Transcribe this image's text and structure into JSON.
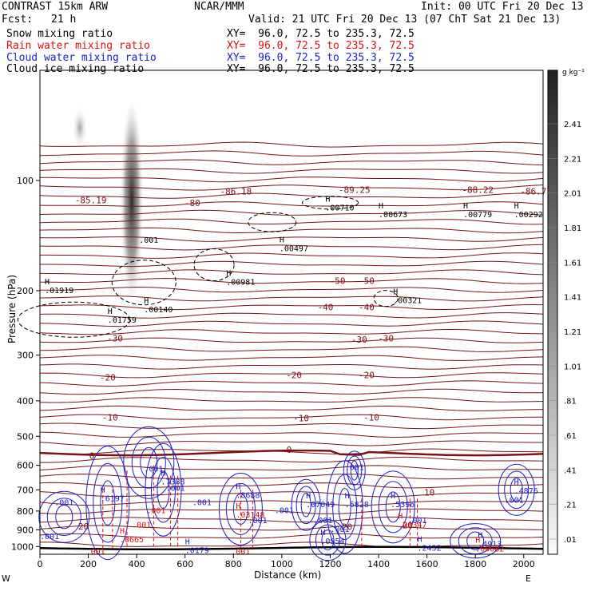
{
  "header": {
    "model": "CONTRAST 15km ARW",
    "center": "NCAR/MMM",
    "init": "Init: 00 UTC Fri 20 Dec 13",
    "fcst_label": "Fcst:",
    "fcst_value": "21 h",
    "valid": "Valid: 21 UTC Fri 20 Dec 13 (07 ChT Sat 21 Dec 13)"
  },
  "fields": [
    {
      "name": "Snow mixing ratio",
      "xy": "XY=  96.0, 72.5 to 235.3, 72.5",
      "color": "#000000"
    },
    {
      "name": "Rain water mixing ratio",
      "xy": "XY=  96.0, 72.5 to 235.3, 72.5",
      "color": "#dd1111"
    },
    {
      "name": "Cloud water mixing ratio",
      "xy": "XY=  96.0, 72.5 to 235.3, 72.5",
      "color": "#1a22cc"
    },
    {
      "name": "Cloud ice mixing ratio",
      "xy": "XY=  96.0, 72.5 to 235.3, 72.5",
      "color": "#000000"
    }
  ],
  "colorbar": {
    "unit": "g kg⁻¹",
    "labels": [
      "2.41",
      "2.21",
      "2.01",
      "1.81",
      "1.61",
      "1.41",
      "1.21",
      "1.01",
      ".81",
      ".61",
      ".41",
      ".21",
      ".01"
    ]
  },
  "colors": {
    "temperature": "#7a1414",
    "cloud_water": "#1a22cc",
    "rain": "#dd1111",
    "snow": "#000000"
  },
  "chart_data": {
    "type": "cross-section",
    "xlabel": "Distance (km)",
    "ylabel": "Pressure (hPa)",
    "x_ticks": [
      "0",
      "200",
      "400",
      "600",
      "800",
      "1000",
      "1200",
      "1400",
      "1600",
      "1800",
      "2000"
    ],
    "y_ticks": [
      "100",
      "200",
      "300",
      "400",
      "500",
      "600",
      "700",
      "800",
      "900",
      "1000"
    ],
    "xlim": [
      0,
      2080
    ],
    "ylim": [
      1050,
      50
    ],
    "y_scale": "log",
    "left_end": "W",
    "right_end": "E",
    "temperature_labels": [
      {
        "text": "-85.19",
        "x": 210,
        "p": 113
      },
      {
        "text": "-80",
        "x": 630,
        "p": 115
      },
      {
        "text": "-86.18",
        "x": 810,
        "p": 107
      },
      {
        "text": "-89.25",
        "x": 1300,
        "p": 106
      },
      {
        "text": "-88.22",
        "x": 1810,
        "p": 106
      },
      {
        "text": "-86.7",
        "x": 2040,
        "p": 107
      },
      {
        "text": "-50",
        "x": 1230,
        "p": 188
      },
      {
        "text": "-50",
        "x": 1350,
        "p": 188
      },
      {
        "text": "-40",
        "x": 1180,
        "p": 222
      },
      {
        "text": "-40",
        "x": 1350,
        "p": 222
      },
      {
        "text": "-30",
        "x": 310,
        "p": 270
      },
      {
        "text": "-30",
        "x": 1320,
        "p": 272
      },
      {
        "text": "-30",
        "x": 1430,
        "p": 270
      },
      {
        "text": "-20",
        "x": 280,
        "p": 345
      },
      {
        "text": "-20",
        "x": 1050,
        "p": 340
      },
      {
        "text": "-20",
        "x": 1350,
        "p": 340
      },
      {
        "text": "-10",
        "x": 290,
        "p": 444
      },
      {
        "text": "-10",
        "x": 1080,
        "p": 446
      },
      {
        "text": "-10",
        "x": 1370,
        "p": 444
      },
      {
        "text": "0",
        "x": 215,
        "p": 565
      },
      {
        "text": "0",
        "x": 1030,
        "p": 544
      },
      {
        "text": "10",
        "x": 1610,
        "p": 712
      },
      {
        "text": "20",
        "x": 180,
        "p": 880
      },
      {
        "text": "20",
        "x": 1270,
        "p": 882
      },
      {
        "text": "20",
        "x": 1520,
        "p": 875
      }
    ],
    "extrema": [
      {
        "m": "H",
        "value": ".01919",
        "x": 20,
        "p": 195,
        "color": "#000000"
      },
      {
        "m": "H",
        "value": ".01759",
        "x": 280,
        "p": 235,
        "color": "#000000"
      },
      {
        "m": "H",
        "value": ".00140",
        "x": 430,
        "p": 220,
        "color": "#000000"
      },
      {
        "m": "H",
        "value": ".00981",
        "x": 770,
        "p": 185,
        "color": "#000000"
      },
      {
        "m": "H",
        "value": ".00497",
        "x": 990,
        "p": 150,
        "color": "#000000"
      },
      {
        "m": "H",
        "value": ".00710",
        "x": 1180,
        "p": 116,
        "color": "#000000"
      },
      {
        "m": "H",
        "value": ".00673",
        "x": 1400,
        "p": 121,
        "color": "#000000"
      },
      {
        "m": "H",
        "value": ".00779",
        "x": 1750,
        "p": 121,
        "color": "#000000"
      },
      {
        "m": "H",
        "value": ".00292",
        "x": 1960,
        "p": 121,
        "color": "#000000"
      },
      {
        "m": "H",
        "value": ".00321",
        "x": 1460,
        "p": 208,
        "color": "#000000"
      },
      {
        "m": "H",
        "value": ".7388",
        "x": 500,
        "p": 650,
        "color": "#1a22cc"
      },
      {
        "m": "H",
        "value": ".6197",
        "x": 250,
        "p": 722,
        "color": "#1a22cc"
      },
      {
        "m": "H",
        "value": ".8688",
        "x": 810,
        "p": 708,
        "color": "#1a22cc"
      },
      {
        "m": "H",
        "value": ".07049",
        "x": 1100,
        "p": 750,
        "color": "#1a22cc"
      },
      {
        "m": "H",
        "value": ".6828",
        "x": 1260,
        "p": 750,
        "color": "#1a22cc"
      },
      {
        "m": "H",
        "value": ".5396",
        "x": 1450,
        "p": 750,
        "color": "#1a22cc"
      },
      {
        "m": "H",
        "value": ".4913",
        "x": 1810,
        "p": 962,
        "color": "#1a22cc"
      },
      {
        "m": "H",
        "value": ".4876",
        "x": 1960,
        "p": 688,
        "color": "#1a22cc"
      },
      {
        "m": "H",
        "value": ".0954",
        "x": 1160,
        "p": 945,
        "color": "#1a22cc"
      },
      {
        "m": "H",
        "value": ".2432",
        "x": 1560,
        "p": 985,
        "color": "#1a22cc"
      },
      {
        "m": "H",
        "value": ".0179",
        "x": 600,
        "p": 1000,
        "color": "#1a22cc"
      },
      {
        "m": "H",
        "value": ".0665",
        "x": 330,
        "p": 935,
        "color": "#dd1111"
      },
      {
        "m": "H",
        "value": ".03148",
        "x": 810,
        "p": 800,
        "color": "#dd1111"
      },
      {
        "m": "H",
        "value": ".00347",
        "x": 1480,
        "p": 852,
        "color": "#dd1111"
      },
      {
        "m": "H",
        "value": ".00082",
        "x": 1800,
        "p": 990,
        "color": "#dd1111"
      }
    ],
    "contour_labels": [
      {
        "text": ".001",
        "x": 450,
        "p": 145,
        "color": "#000000"
      },
      {
        "text": ".001",
        "x": 470,
        "p": 612,
        "color": "#1a22cc"
      },
      {
        "text": ".001",
        "x": 560,
        "p": 690,
        "color": "#1a22cc"
      },
      {
        "text": ".001",
        "x": 670,
        "p": 755,
        "color": "#1a22cc"
      },
      {
        "text": ".001",
        "x": 100,
        "p": 755,
        "color": "#1a22cc"
      },
      {
        "text": ".001",
        "x": 900,
        "p": 845,
        "color": "#1a22cc"
      },
      {
        "text": ".001",
        "x": 1010,
        "p": 795,
        "color": "#1a22cc"
      },
      {
        "text": ".001",
        "x": 1170,
        "p": 845,
        "color": "#1a22cc"
      },
      {
        "text": ".001",
        "x": 1240,
        "p": 895,
        "color": "#1a22cc"
      },
      {
        "text": ".001",
        "x": 1560,
        "p": 845,
        "color": "#1a22cc"
      },
      {
        "text": ".001",
        "x": 40,
        "p": 935,
        "color": "#1a22cc"
      },
      {
        "text": ".001",
        "x": 1300,
        "p": 605,
        "color": "#1a22cc"
      },
      {
        "text": ".001",
        "x": 1960,
        "p": 745,
        "color": "#1a22cc"
      },
      {
        "text": ".001",
        "x": 480,
        "p": 795,
        "color": "#dd1111"
      },
      {
        "text": ".001",
        "x": 420,
        "p": 870,
        "color": "#dd1111"
      },
      {
        "text": ".001",
        "x": 230,
        "p": 1030,
        "color": "#dd1111"
      },
      {
        "text": ".001",
        "x": 830,
        "p": 1030,
        "color": "#dd1111"
      }
    ]
  }
}
